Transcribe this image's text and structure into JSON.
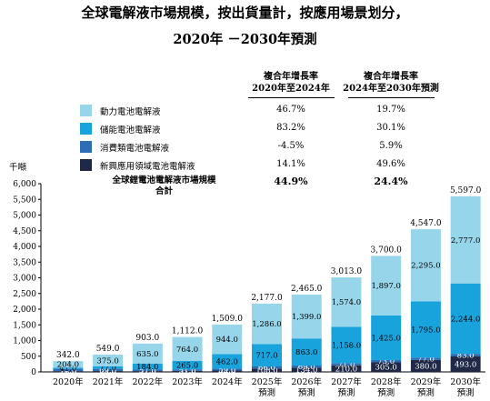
{
  "header": {
    "title_line1": "全球電解液市場規模，按出貨量計，按應用場景划分，",
    "title_line2": "2020年 －2030年預測",
    "cagr_col1": [
      "複合年增長率",
      "2020年至2024年"
    ],
    "cagr_col2": [
      "複合年增長率",
      "2024年至2030年預測"
    ],
    "unit": "千噸"
  },
  "legend": [
    {
      "label": "動力電池電解液",
      "cagr1": "46.7%",
      "cagr2": "19.7%",
      "color": "#97d6ea"
    },
    {
      "label": "儲能電池電解液",
      "cagr1": "83.2%",
      "cagr2": "30.1%",
      "color": "#18a3dd"
    },
    {
      "label": "消費類電池電解液",
      "cagr1": "-4.5%",
      "cagr2": "5.9%",
      "color": "#2d6db5"
    },
    {
      "label": "新興應用領域電池電解液",
      "cagr1": "14.1%",
      "cagr2": "49.6%",
      "color": "#1f2947"
    }
  ],
  "total_row": {
    "label": [
      "全球鋰電池電解液市場規模",
      "合計"
    ],
    "cagr1": "44.9%",
    "cagr2": "24.4%"
  },
  "chart_data": {
    "type": "bar",
    "stacked": true,
    "ylim": [
      0,
      6000
    ],
    "yticks": [
      "0",
      "500",
      "1,000",
      "1,500",
      "2,000",
      "2,500",
      "3,000",
      "3,500",
      "4,000",
      "4,500",
      "5,000",
      "5,500",
      "6,000"
    ],
    "ytick_values": [
      0,
      500,
      1000,
      1500,
      2000,
      2500,
      3000,
      3500,
      4000,
      4500,
      5000,
      5500,
      6000
    ],
    "categories": [
      [
        "2020年"
      ],
      [
        "2021年"
      ],
      [
        "2022年"
      ],
      [
        "2023年"
      ],
      [
        "2024年"
      ],
      [
        "2025年",
        "預測"
      ],
      [
        "2026年",
        "預測"
      ],
      [
        "2027年",
        "預測"
      ],
      [
        "2028年",
        "預測"
      ],
      [
        "2029年",
        "預測"
      ],
      [
        "2030年",
        "預測"
      ]
    ],
    "series": [
      {
        "name": "新興應用領域電池電解液",
        "color": "#1f2947",
        "label_color": "#ffffff",
        "values": [
          26,
          28,
          27,
          32,
          44,
          108,
          134,
          210,
          305,
          380,
          493
        ],
        "labels": [
          "26.0",
          "28.0",
          "27.0",
          "32.0",
          "44.0",
          "108.0",
          "134.0",
          "210.0",
          "305.0",
          "380.0",
          "493.0"
        ]
      },
      {
        "name": "消費類電池電解液",
        "color": "#2d6db5",
        "label_color": "#ffffff",
        "values": [
          71,
          69,
          57,
          51,
          59,
          66,
          69,
          71,
          73,
          77,
          83
        ],
        "labels": [
          "71.0",
          "69.0",
          "57.0",
          "51.0",
          "59.0",
          "66.0",
          "69.0",
          "71.0",
          "73.0",
          "77.0",
          "83.0"
        ]
      },
      {
        "name": "儲能電池電解液",
        "color": "#18a3dd",
        "label_color": "#000000",
        "values": [
          41,
          77,
          184,
          265,
          462,
          717,
          863,
          1158,
          1425,
          1795,
          2244
        ],
        "labels": [
          "41.0",
          "77.0",
          "184.0",
          "265.0",
          "462.0",
          "717.0",
          "863.0",
          "1,158.0",
          "1,425.0",
          "1,795.0",
          "2,244.0"
        ]
      },
      {
        "name": "動力電池電解液",
        "color": "#97d6ea",
        "label_color": "#000000",
        "values": [
          204,
          375,
          635,
          764,
          944,
          1286,
          1399,
          1574,
          1897,
          2295,
          2777
        ],
        "labels": [
          "204.0",
          "375.0",
          "635.0",
          "764.0",
          "944.0",
          "1,286.0",
          "1,399.0",
          "1,574.0",
          "1,897.0",
          "2,295.0",
          "2,777.0"
        ]
      }
    ],
    "totals": [
      342,
      549,
      903,
      1112,
      1509,
      2177,
      2465,
      3013,
      3700,
      4547,
      5597
    ],
    "total_labels": [
      "342.0",
      "549.0",
      "903.0",
      "1,112.0",
      "1,509.0",
      "2,177.0",
      "2,465.0",
      "3,013.0",
      "3,700.0",
      "4,547.0",
      "5,597.0"
    ]
  }
}
